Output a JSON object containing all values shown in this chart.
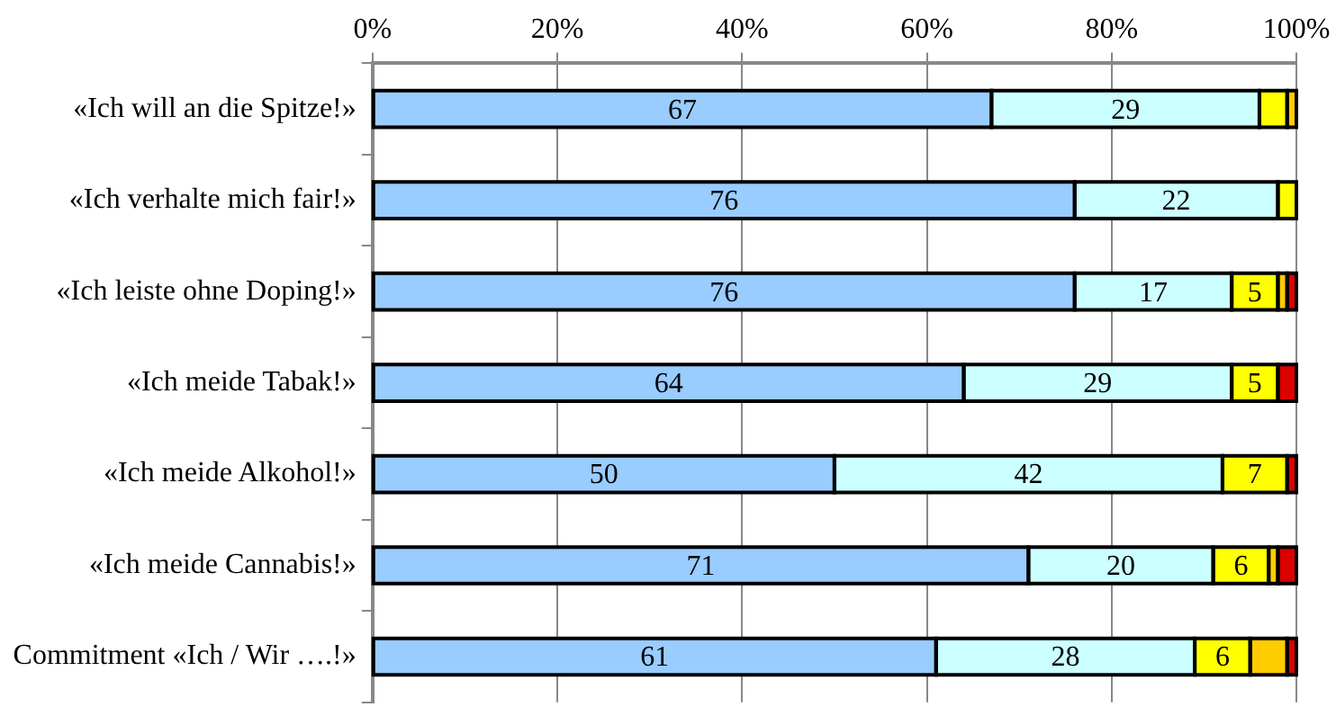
{
  "chart_data": {
    "type": "bar",
    "orientation": "horizontal",
    "stacked": true,
    "categories": [
      "«Ich will an die Spitze!»",
      "«Ich verhalte mich fair!»",
      "«Ich leiste ohne Doping!»",
      "«Ich meide Tabak!»",
      "«Ich meide Alkohol!»",
      "«Ich meide Cannabis!»",
      "Commitment «Ich / Wir ….!»"
    ],
    "series": [
      {
        "color": "#99ccff",
        "values": [
          67,
          76,
          76,
          64,
          50,
          71,
          61
        ],
        "value_labels": [
          "67",
          "76",
          "76",
          "64",
          "50",
          "71",
          "61"
        ]
      },
      {
        "color": "#ccffff",
        "values": [
          29,
          22,
          17,
          29,
          42,
          20,
          28
        ],
        "value_labels": [
          "29",
          "22",
          "17",
          "29",
          "42",
          "20",
          "28"
        ]
      },
      {
        "color": "#ffff00",
        "values": [
          3,
          2,
          5,
          5,
          7,
          6,
          6
        ],
        "value_labels": [
          null,
          null,
          "5",
          "5",
          "7",
          "6",
          "6"
        ]
      },
      {
        "color": "#ffcc00",
        "values": [
          1,
          null,
          1,
          null,
          null,
          1,
          4
        ],
        "value_labels": [
          null,
          null,
          null,
          null,
          null,
          null,
          null
        ]
      },
      {
        "color": "#dd0000",
        "values": [
          null,
          null,
          1,
          2,
          1,
          2,
          1
        ],
        "value_labels": [
          null,
          null,
          null,
          null,
          null,
          null,
          null
        ]
      }
    ],
    "xlim": [
      0,
      100
    ],
    "xticks": [
      {
        "value": 0,
        "label": "0%"
      },
      {
        "value": 20,
        "label": "20%"
      },
      {
        "value": 40,
        "label": "40%"
      },
      {
        "value": 60,
        "label": "60%"
      },
      {
        "value": 80,
        "label": "80%"
      },
      {
        "value": 100,
        "label": "100%"
      }
    ],
    "grid": "x",
    "legend": false
  }
}
